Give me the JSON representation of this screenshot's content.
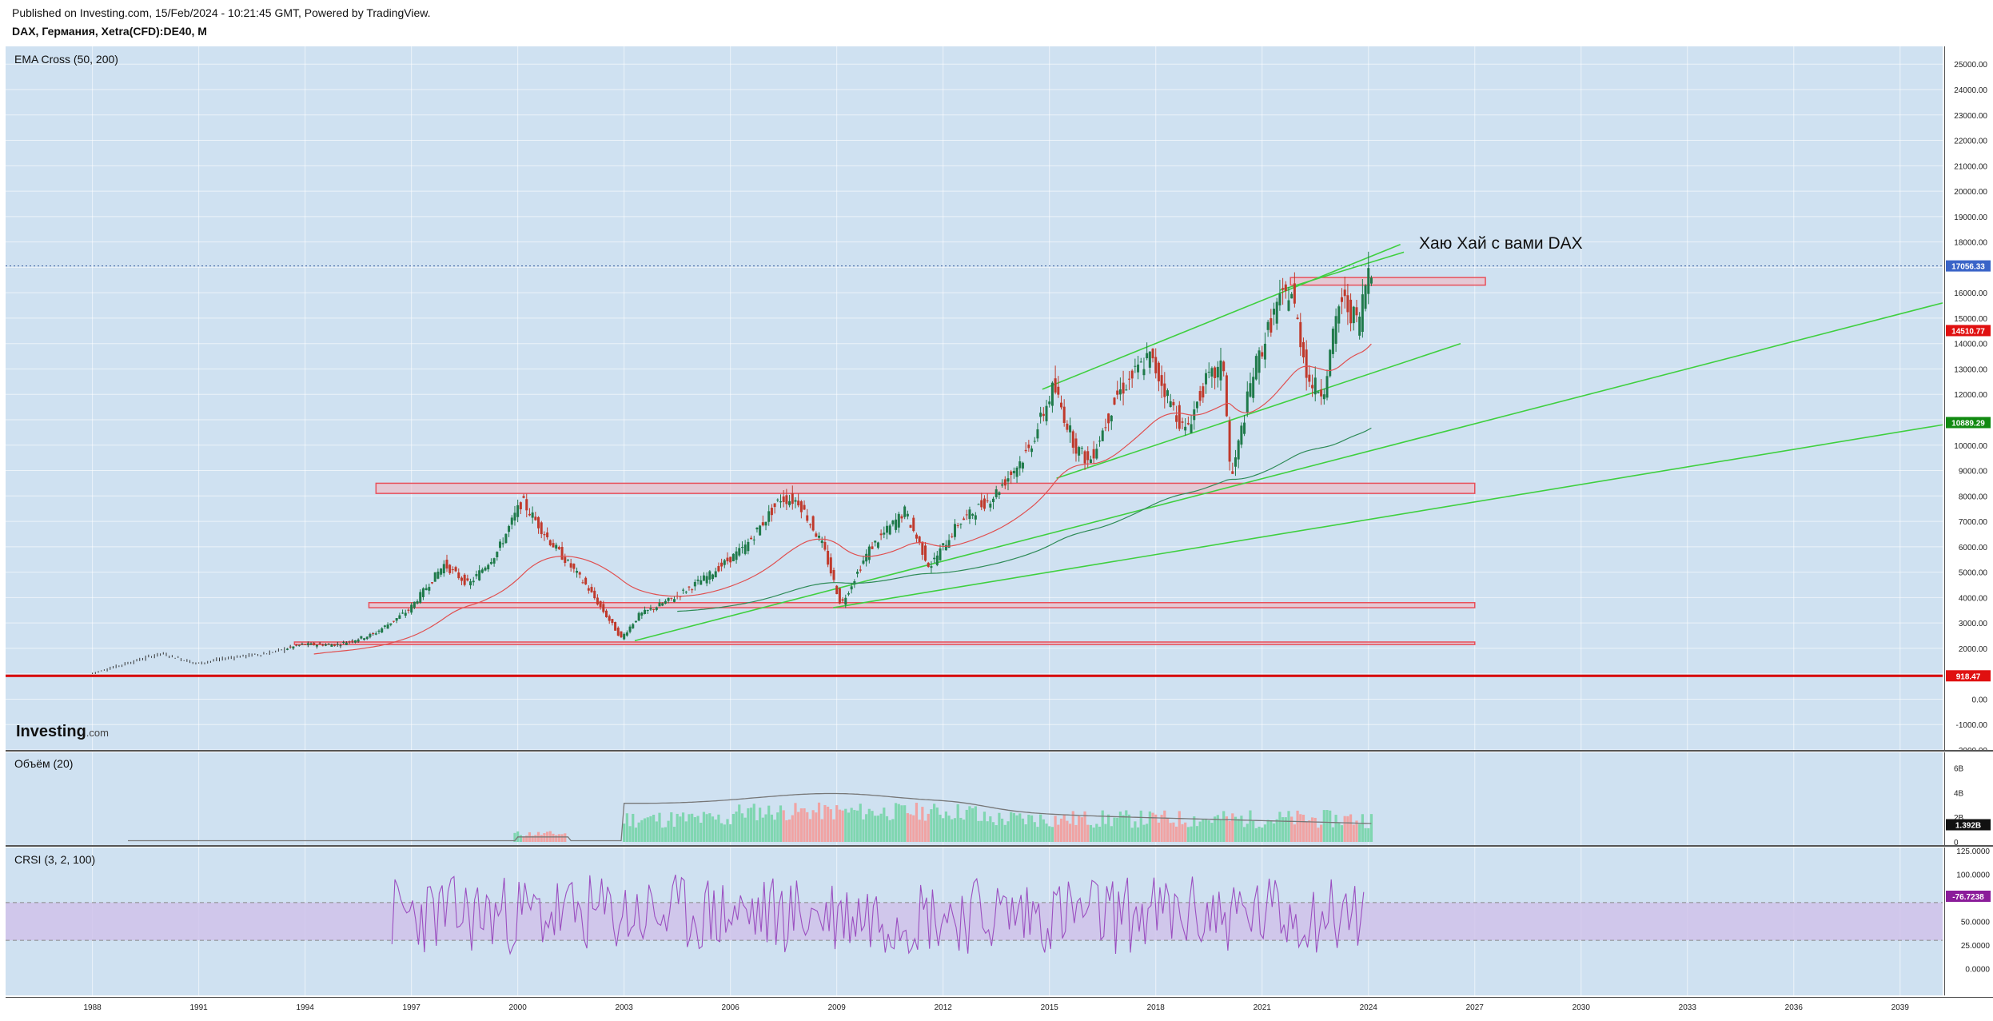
{
  "header": {
    "published": "Published on Investing.com, 15/Feb/2024 - 10:21:45 GMT, Powered by TradingView.",
    "symbol": "DAX, Германия, Xetra(CFD):DE40, M"
  },
  "logo": {
    "main": "Investing",
    "suffix": ".com"
  },
  "annotation": "Хаю Хай с вами DAX",
  "colors": {
    "pane_bg": "#cfe1f1",
    "candle_up": "#1f7a4a",
    "candle_down": "#c0392b",
    "ema_fast": "#e05050",
    "ema_slow": "#2e8b57",
    "trendline": "#3fcf3f",
    "zone": "#e8505a",
    "volume_up": "#7fd6b0",
    "volume_down": "#f0a3a3",
    "crsi_line": "#9b4fc0",
    "crsi_band": "#cfc0ea"
  },
  "chart_data": [
    {
      "type": "line",
      "title": "EMA Cross (50, 200)",
      "yticks": [
        "25000.00",
        "24000.00",
        "23000.00",
        "22000.00",
        "21000.00",
        "20000.00",
        "19000.00",
        "18000.00",
        "17000.00",
        "16000.00",
        "15000.00",
        "14000.00",
        "13000.00",
        "12000.00",
        "11000.00",
        "10000.00",
        "9000.00",
        "8000.00",
        "7000.00",
        "6000.00",
        "5000.00",
        "4000.00",
        "3000.00",
        "2000.00",
        "1000.00",
        "0.00",
        "-1000.00",
        "-2000.00"
      ],
      "ylim": [
        -2000,
        25700
      ],
      "xticks": [
        "1988",
        "1991",
        "1994",
        "1997",
        "2000",
        "2003",
        "2006",
        "2009",
        "2012",
        "2015",
        "2018",
        "2021",
        "2024",
        "2027",
        "2030",
        "2033",
        "2036",
        "2039"
      ],
      "xlim": [
        1985.55,
        2040.2
      ],
      "last_price": "17056.33",
      "ema_fast_last": "14510.77",
      "ema_slow_last": "10889.29",
      "support_line": "918.47",
      "series": [
        {
          "name": "price",
          "x": [
            1988.0,
            1989.0,
            1990.0,
            1991.0,
            1992.0,
            1993.0,
            1994.0,
            1995.0,
            1996.0,
            1997.0,
            1998.0,
            1998.7,
            1999.5,
            2000.2,
            2001.0,
            2002.0,
            2003.0,
            2003.5,
            2004.5,
            2005.5,
            2006.5,
            2007.5,
            2008.0,
            2008.7,
            2009.2,
            2010.0,
            2011.0,
            2011.7,
            2012.5,
            2013.5,
            2014.5,
            2015.2,
            2015.8,
            2016.2,
            2017.0,
            2017.9,
            2018.9,
            2019.5,
            2020.0,
            2020.2,
            2020.8,
            2021.5,
            2021.9,
            2022.4,
            2022.8,
            2023.3,
            2023.8,
            2024.1
          ],
          "values": [
            1000,
            1400,
            1800,
            1400,
            1650,
            1800,
            2150,
            2150,
            2550,
            3500,
            5300,
            4500,
            5800,
            7800,
            6200,
            4500,
            2400,
            3300,
            4000,
            4900,
            6000,
            7900,
            7800,
            6000,
            3700,
            5900,
            7400,
            5200,
            6900,
            8000,
            9800,
            12300,
            10000,
            9300,
            12000,
            13500,
            10500,
            12500,
            13100,
            8500,
            12700,
            15500,
            16100,
            12500,
            12100,
            15800,
            14800,
            17100
          ]
        }
      ],
      "levels": [
        {
          "name": "zone",
          "range": [
            8100,
            8500
          ],
          "from": 1996.0
        },
        {
          "name": "zone",
          "range": [
            3600,
            3800
          ],
          "from": 1995.8
        },
        {
          "name": "zone",
          "range": [
            2150,
            2250
          ],
          "from": 1993.7
        },
        {
          "name": "zone",
          "range": [
            16300,
            16600
          ],
          "from": 2021.8
        }
      ]
    },
    {
      "type": "bar",
      "title": "Объём (20)",
      "yticks": [
        "6B",
        "4B",
        "2B",
        "0"
      ],
      "ylim": [
        0,
        7
      ],
      "last_value": "1.392B"
    },
    {
      "type": "line",
      "title": "CRSI (3, 2, 100)",
      "yticks": [
        "125.0000",
        "100.0000",
        "75.0000",
        "50.0000",
        "25.0000",
        "0.0000"
      ],
      "ylim": [
        -25,
        125
      ],
      "band": [
        30,
        70
      ],
      "last_value": "76.7238"
    }
  ]
}
